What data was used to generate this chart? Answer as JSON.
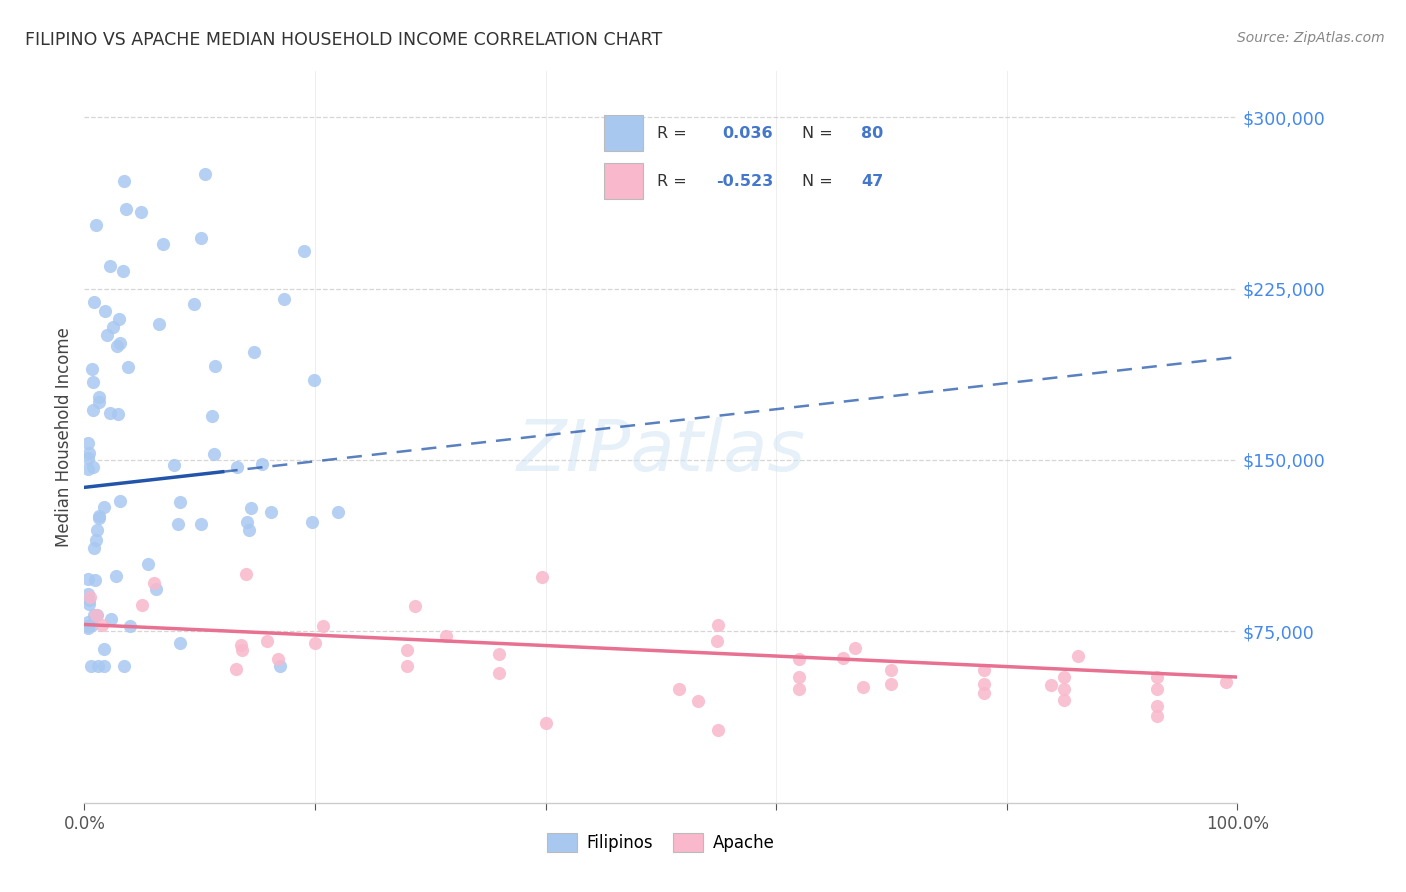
{
  "title": "FILIPINO VS APACHE MEDIAN HOUSEHOLD INCOME CORRELATION CHART",
  "source": "Source: ZipAtlas.com",
  "ylabel": "Median Household Income",
  "watermark": "ZIPatlas",
  "background_color": "#ffffff",
  "grid_color": "#cccccc",
  "filipinos_color": "#a8c8f0",
  "apache_color": "#f9b8cc",
  "filipinos_line_color": "#2255aa",
  "apache_line_color": "#e87090",
  "filipinos_R": 0.036,
  "filipinos_N": 80,
  "apache_R": -0.523,
  "apache_N": 47,
  "ytick_vals": [
    75000,
    150000,
    225000,
    300000
  ],
  "ytick_labels": [
    "$75,000",
    "$150,000",
    "$225,000",
    "$300,000"
  ],
  "ylim": [
    0,
    320000
  ],
  "xlim": [
    0.0,
    1.0
  ],
  "fil_line_x0": 0.0,
  "fil_line_x_solid_end": 0.12,
  "fil_line_x1": 1.0,
  "fil_line_y0": 138000,
  "fil_line_y1": 195000,
  "ap_line_x0": 0.0,
  "ap_line_x1": 1.0,
  "ap_line_y0": 78000,
  "ap_line_y1": 55000,
  "legend_R1": "R =  0.036",
  "legend_N1": "N = 80",
  "legend_R2": "R = -0.523",
  "legend_N2": "N = 47",
  "legend_color": "#4477cc",
  "tick_color": "#4488ee"
}
